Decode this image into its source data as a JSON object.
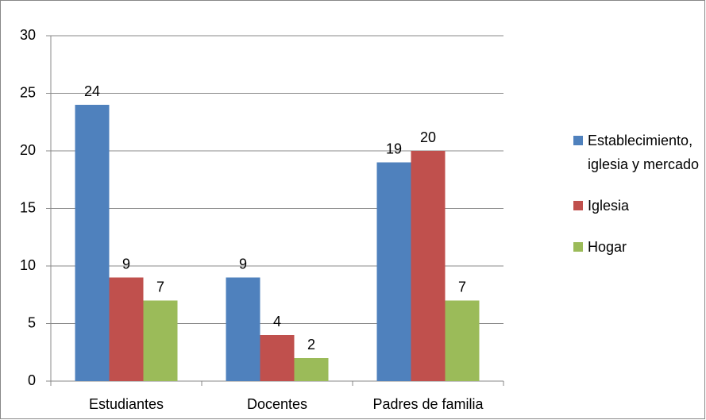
{
  "chart_data": {
    "type": "bar",
    "categories": [
      "Estudiantes",
      "Docentes",
      "Padres de familia"
    ],
    "series": [
      {
        "name": "Establecimiento, iglesia y mercado",
        "color": "#4f81bd",
        "values": [
          24,
          9,
          19
        ]
      },
      {
        "name": "Iglesia",
        "color": "#c0504d",
        "values": [
          9,
          4,
          20
        ]
      },
      {
        "name": "Hogar",
        "color": "#9bbb59",
        "values": [
          7,
          2,
          7
        ]
      }
    ],
    "ylim": [
      0,
      30
    ],
    "yticks": [
      0,
      5,
      10,
      15,
      20,
      25,
      30
    ],
    "grid": true,
    "legend": "right"
  }
}
